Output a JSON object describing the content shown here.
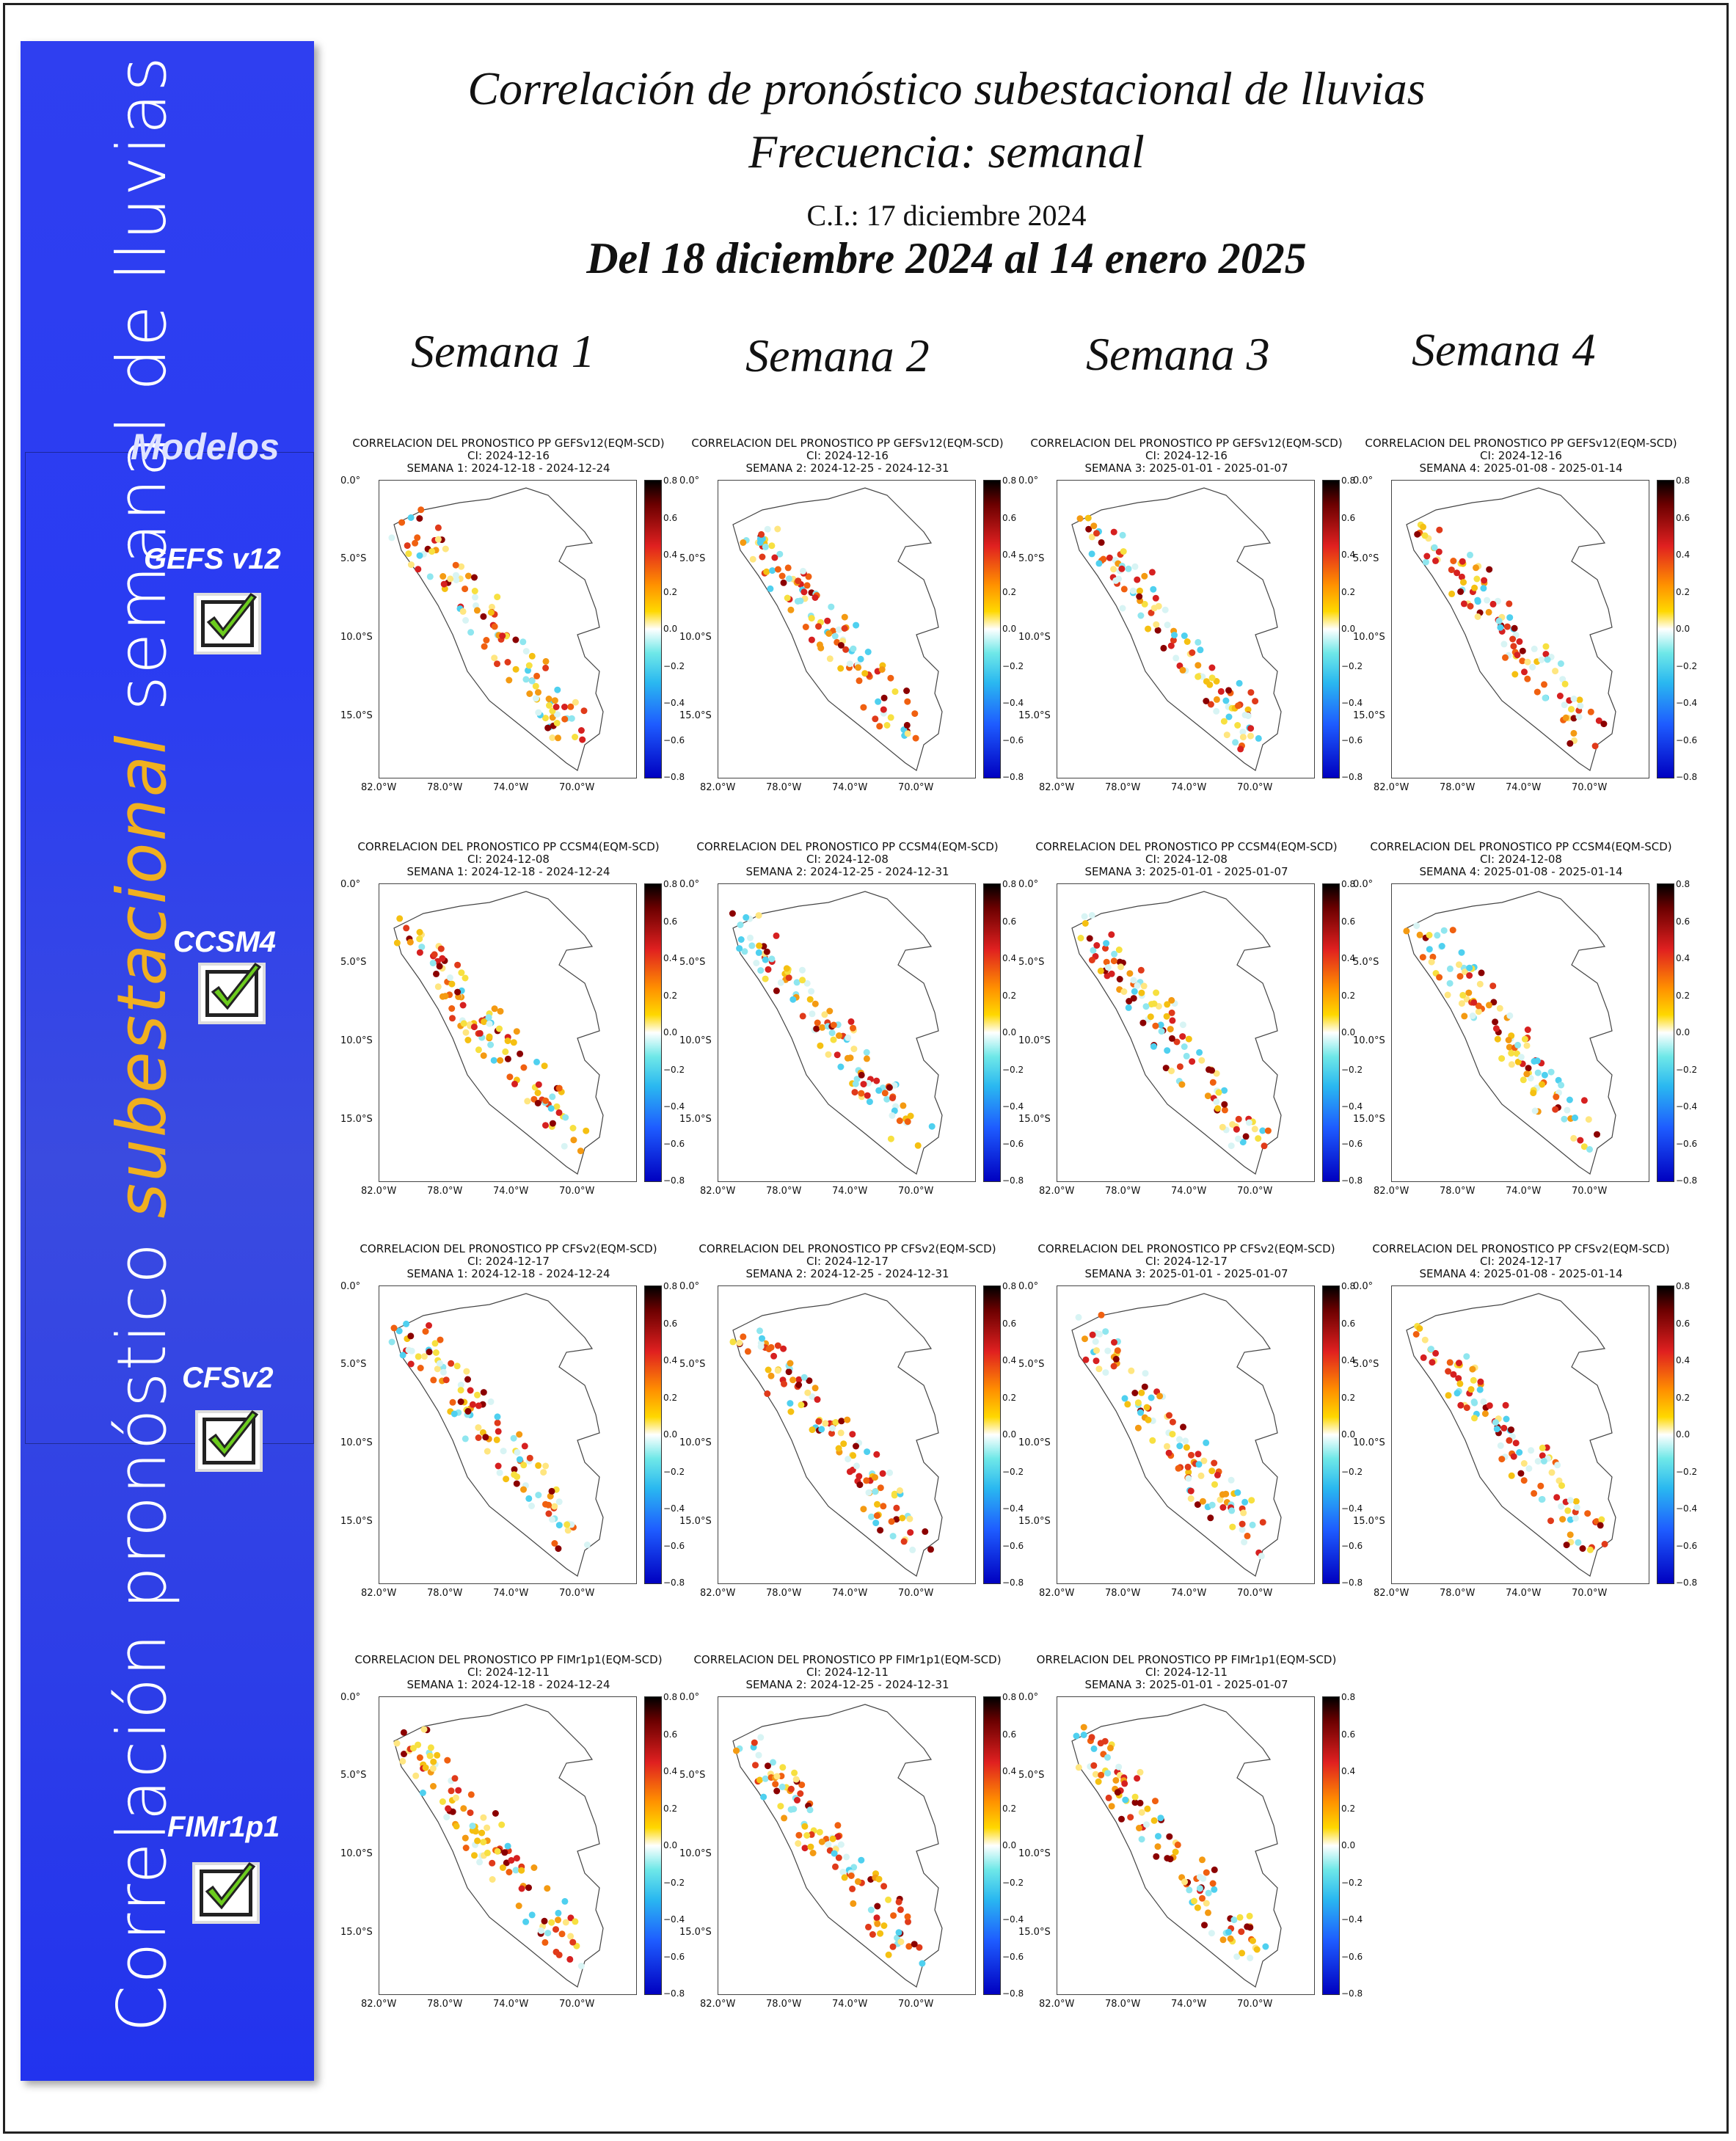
{
  "header": {
    "title_line1": "Correlación de pronóstico subestacional de lluvias",
    "title_line2": "Frecuencia: semanal",
    "ci": "C.I.: 17 diciembre 2024",
    "range": "Del 18 diciembre 2024 al 14 enero 2025"
  },
  "sidebar": {
    "vertical_title_part1": "Correlación pronóstico ",
    "vertical_title_highlight": "subestacional",
    "vertical_title_part2": " semanal de lluvias",
    "modelos_label": "Modelos",
    "models": [
      "GEFS v12",
      "CCSM4",
      "CFSv2",
      "FIMr1p1"
    ]
  },
  "weeks": [
    "Semana 1",
    "Semana 2",
    "Semana 3",
    "Semana 4"
  ],
  "panels": [
    {
      "t1": "CORRELACION DEL PRONOSTICO PP GEFSv12(EQM-SCD)",
      "t2": "CI: 2024-12-16",
      "t3": "SEMANA 1: 2024-12-18 - 2024-12-24"
    },
    {
      "t1": "CORRELACION DEL PRONOSTICO PP GEFSv12(EQM-SCD)",
      "t2": "CI: 2024-12-16",
      "t3": "SEMANA 2: 2024-12-25 - 2024-12-31"
    },
    {
      "t1": "CORRELACION DEL PRONOSTICO PP GEFSv12(EQM-SCD)",
      "t2": "CI: 2024-12-16",
      "t3": "SEMANA 3: 2025-01-01 - 2025-01-07"
    },
    {
      "t1": "CORRELACION DEL PRONOSTICO PP GEFSv12(EQM-SCD)",
      "t2": "CI: 2024-12-16",
      "t3": "SEMANA 4: 2025-01-08 - 2025-01-14"
    },
    {
      "t1": "CORRELACION DEL PRONOSTICO PP CCSM4(EQM-SCD)",
      "t2": "CI: 2024-12-08",
      "t3": "SEMANA 1: 2024-12-18 - 2024-12-24"
    },
    {
      "t1": "CORRELACION DEL PRONOSTICO PP CCSM4(EQM-SCD)",
      "t2": "CI: 2024-12-08",
      "t3": "SEMANA 2: 2024-12-25 - 2024-12-31"
    },
    {
      "t1": "CORRELACION DEL PRONOSTICO PP CCSM4(EQM-SCD)",
      "t2": "CI: 2024-12-08",
      "t3": "SEMANA 3: 2025-01-01 - 2025-01-07"
    },
    {
      "t1": "CORRELACION DEL PRONOSTICO PP CCSM4(EQM-SCD)",
      "t2": "CI: 2024-12-08",
      "t3": "SEMANA 4: 2025-01-08 - 2025-01-14"
    },
    {
      "t1": "CORRELACION DEL PRONOSTICO PP CFSv2(EQM-SCD)",
      "t2": "CI: 2024-12-17",
      "t3": "SEMANA 1: 2024-12-18 - 2024-12-24"
    },
    {
      "t1": "CORRELACION DEL PRONOSTICO PP CFSv2(EQM-SCD)",
      "t2": "CI: 2024-12-17",
      "t3": "SEMANA 2: 2024-12-25 - 2024-12-31"
    },
    {
      "t1": "CORRELACION DEL PRONOSTICO PP CFSv2(EQM-SCD)",
      "t2": "CI: 2024-12-17",
      "t3": "SEMANA 3: 2025-01-01 - 2025-01-07"
    },
    {
      "t1": "CORRELACION DEL PRONOSTICO PP CFSv2(EQM-SCD)",
      "t2": "CI: 2024-12-17",
      "t3": "SEMANA 4: 2025-01-08 - 2025-01-14"
    },
    {
      "t1": "CORRELACION DEL PRONOSTICO PP FIMr1p1(EQM-SCD)",
      "t2": "CI: 2024-12-11",
      "t3": "SEMANA 1: 2024-12-18 - 2024-12-24"
    },
    {
      "t1": "CORRELACION DEL PRONOSTICO PP FIMr1p1(EQM-SCD)",
      "t2": "CI: 2024-12-11",
      "t3": "SEMANA 2: 2024-12-25 - 2024-12-31"
    },
    {
      "t1": "ORRELACION DEL PRONOSTICO PP FIMr1p1(EQM-SCD)",
      "t2": "CI: 2024-12-11",
      "t3": "SEMANA 3: 2025-01-01 - 2025-01-07"
    }
  ],
  "axes": {
    "y_ticks": [
      "0.0°",
      "5.0°S",
      "10.0°S",
      "15.0°S"
    ],
    "x_ticks": [
      "82.0°W",
      "78.0°W",
      "74.0°W",
      "70.0°W"
    ],
    "cbar_ticks": [
      "0.8",
      "0.6",
      "0.4",
      "0.2",
      "0.0",
      "−0.2",
      "−0.4",
      "−0.6",
      "−0.8"
    ]
  },
  "colors": {
    "sidebar_blue": "#2a3cf2",
    "highlight": "#f0b020",
    "check_green": "#6ccc1e"
  }
}
